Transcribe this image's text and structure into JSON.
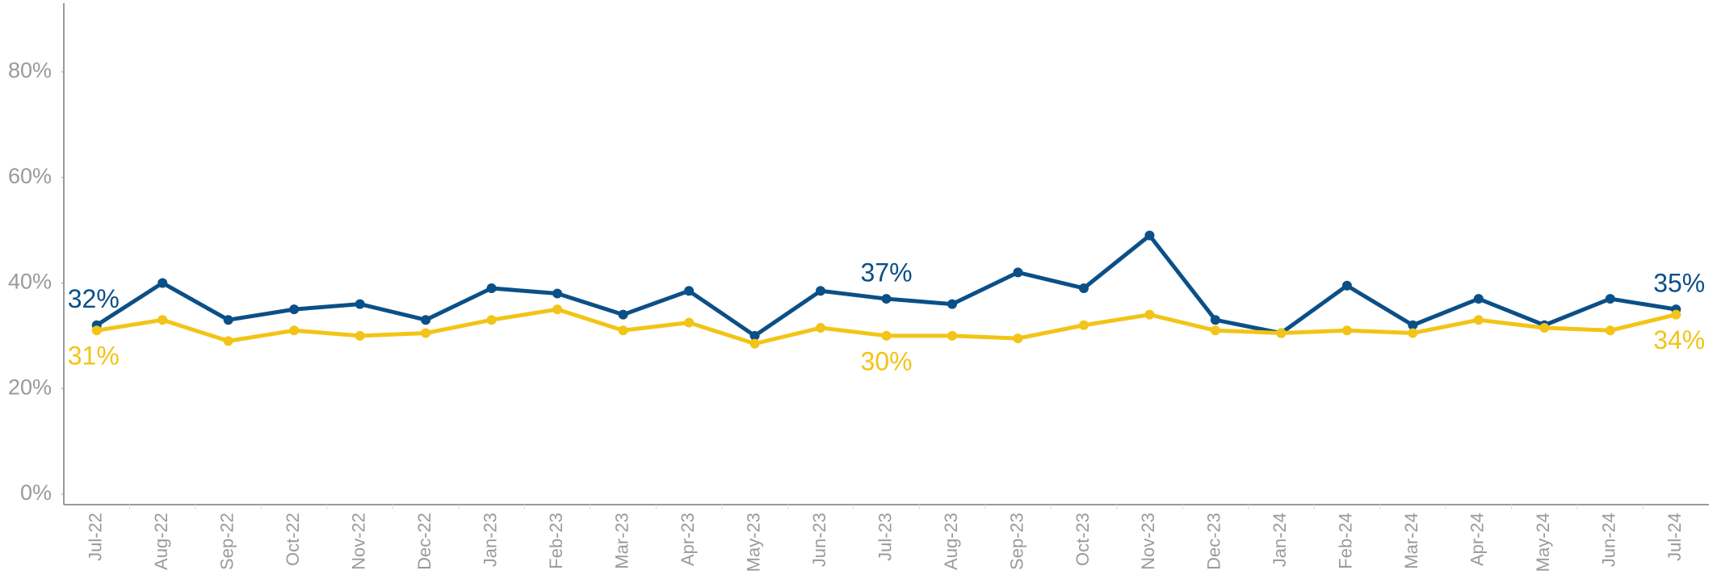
{
  "chart_data": {
    "type": "line",
    "categories": [
      "Jul-22",
      "Aug-22",
      "Sep-22",
      "Oct-22",
      "Nov-22",
      "Dec-22",
      "Jan-23",
      "Feb-23",
      "Mar-23",
      "Apr-23",
      "May-23",
      "Jun-23",
      "Jul-23",
      "Aug-23",
      "Sep-23",
      "Oct-23",
      "Nov-23",
      "Dec-23",
      "Jan-24",
      "Feb-24",
      "Mar-24",
      "Apr-24",
      "May-24",
      "Jun-24",
      "Jul-24"
    ],
    "series": [
      {
        "color": "#0b4f87",
        "values": [
          32,
          40,
          33,
          35,
          36,
          33,
          39,
          38,
          34,
          38.5,
          30,
          38.5,
          37,
          36,
          42,
          39,
          49,
          33,
          30.5,
          39.5,
          32,
          37,
          32,
          37,
          35
        ],
        "value_labels": [
          "32%",
          null,
          null,
          null,
          null,
          null,
          null,
          null,
          null,
          null,
          null,
          null,
          "37%",
          null,
          null,
          null,
          null,
          null,
          null,
          null,
          null,
          null,
          null,
          null,
          "35%"
        ]
      },
      {
        "color": "#f2c417",
        "values": [
          31,
          33,
          29,
          31,
          30,
          30.5,
          33,
          35,
          31,
          32.5,
          28.5,
          31.5,
          30,
          30,
          29.5,
          32,
          34,
          31,
          30.5,
          31,
          30.5,
          33,
          31.5,
          31,
          34
        ],
        "value_labels": [
          "31%",
          null,
          null,
          null,
          null,
          null,
          null,
          null,
          null,
          null,
          null,
          null,
          "30%",
          null,
          null,
          null,
          null,
          null,
          null,
          null,
          null,
          null,
          null,
          null,
          "34%"
        ]
      }
    ],
    "ylim": [
      -2,
      93
    ],
    "yticks": [
      {
        "value": 0,
        "label": "0%"
      },
      {
        "value": 20,
        "label": "20%"
      },
      {
        "value": 40,
        "label": "40%"
      },
      {
        "value": 60,
        "label": "60%"
      },
      {
        "value": 80,
        "label": "80%"
      }
    ],
    "grid": false
  }
}
